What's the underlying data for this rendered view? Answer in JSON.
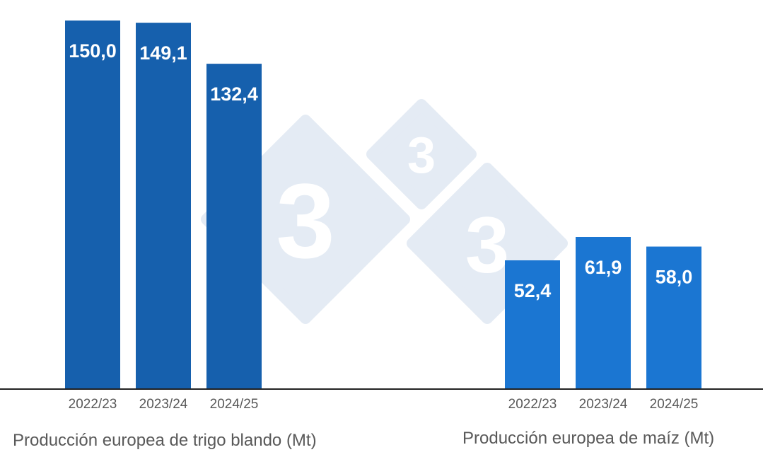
{
  "chart_data": [
    {
      "type": "bar",
      "title": "Producción europea de trigo blando (Mt)",
      "categories": [
        "2022/23",
        "2023/24",
        "2024/25"
      ],
      "values": [
        150.0,
        149.1,
        132.4
      ],
      "value_labels": [
        "150,0",
        "149,1",
        "132,4"
      ],
      "color": "#1660ad",
      "ylim": [
        0,
        150
      ]
    },
    {
      "type": "bar",
      "title": "Producción europea de maíz (Mt)",
      "categories": [
        "2022/23",
        "2023/24",
        "2024/25"
      ],
      "values": [
        52.4,
        61.9,
        58.0
      ],
      "value_labels": [
        "52,4",
        "61,9",
        "58,0"
      ],
      "color": "#1b76d2",
      "ylim": [
        0,
        150
      ]
    }
  ],
  "watermark": {
    "logo_text": [
      "3",
      "3",
      "3"
    ],
    "color": "#e4ebf4"
  },
  "axis_color": "#222222"
}
